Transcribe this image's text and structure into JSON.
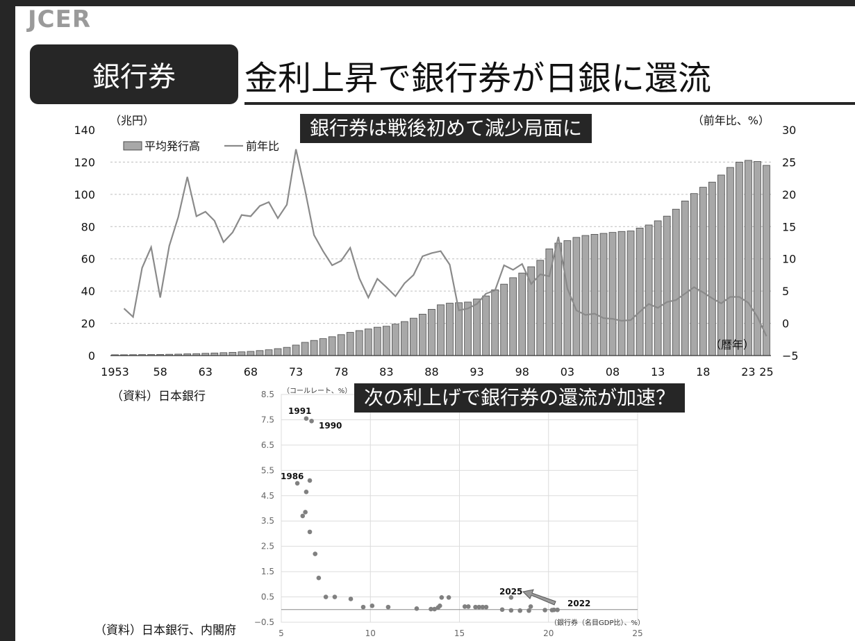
{
  "header": {
    "logo": "JCER",
    "section": "銀行券",
    "title": "金利上昇で銀行券が日銀に還流"
  },
  "banners": {
    "top": "銀行券は戦後初めて減少局面に",
    "bottom": "次の利上げで銀行券の還流が加速？"
  },
  "sources": {
    "top": "（資料）日本銀行",
    "bottom": "（資料）日本銀行、内閣府"
  },
  "colors": {
    "bar": "#a8a8a8",
    "bar_stroke": "#4a4a4a",
    "line": "#8a8a8a",
    "dot": "#808080",
    "banner": "#262626"
  },
  "chart_data": [
    {
      "type": "bar+line",
      "left_unit": "（兆円）",
      "right_unit": "（前年比、%）",
      "x_unit": "（暦年）",
      "ylim_left": [
        0,
        140
      ],
      "ylim_right": [
        -5,
        30
      ],
      "y_ticks_left": [
        "0",
        "20",
        "40",
        "60",
        "80",
        "100",
        "120",
        "140"
      ],
      "y_ticks_right": [
        "−5",
        "0",
        "5",
        "10",
        "15",
        "20",
        "25",
        "30"
      ],
      "x_ticks": [
        {
          "year": 1953,
          "label": "1953"
        },
        {
          "year": 1958,
          "label": "58"
        },
        {
          "year": 1963,
          "label": "63"
        },
        {
          "year": 1968,
          "label": "68"
        },
        {
          "year": 1973,
          "label": "73"
        },
        {
          "year": 1978,
          "label": "78"
        },
        {
          "year": 1983,
          "label": "83"
        },
        {
          "year": 1988,
          "label": "88"
        },
        {
          "year": 1993,
          "label": "93"
        },
        {
          "year": 1998,
          "label": "98"
        },
        {
          "year": 2003,
          "label": "03"
        },
        {
          "year": 2008,
          "label": "08"
        },
        {
          "year": 2013,
          "label": "13"
        },
        {
          "year": 2018,
          "label": "18"
        },
        {
          "year": 2023,
          "label": "23"
        },
        {
          "year": 2025,
          "label": "25"
        }
      ],
      "grid": true,
      "legend_position": "top-left",
      "series": [
        {
          "name": "平均発行高",
          "kind": "bar",
          "axis": "left",
          "years": [
            1953,
            1954,
            1955,
            1956,
            1957,
            1958,
            1959,
            1960,
            1961,
            1962,
            1963,
            1964,
            1965,
            1966,
            1967,
            1968,
            1969,
            1970,
            1971,
            1972,
            1973,
            1974,
            1975,
            1976,
            1977,
            1978,
            1979,
            1980,
            1981,
            1982,
            1983,
            1984,
            1985,
            1986,
            1987,
            1988,
            1989,
            1990,
            1991,
            1992,
            1993,
            1994,
            1995,
            1996,
            1997,
            1998,
            1999,
            2000,
            2001,
            2002,
            2003,
            2004,
            2005,
            2006,
            2007,
            2008,
            2009,
            2010,
            2011,
            2012,
            2013,
            2014,
            2015,
            2016,
            2017,
            2018,
            2019,
            2020,
            2021,
            2022,
            2023,
            2024,
            2025
          ],
          "values": [
            0.5,
            0.5,
            0.55,
            0.6,
            0.65,
            0.7,
            0.8,
            0.9,
            1.1,
            1.2,
            1.4,
            1.6,
            1.8,
            2.0,
            2.3,
            2.6,
            3.1,
            3.6,
            4.3,
            5.1,
            6.5,
            8.2,
            9.4,
            10.5,
            11.7,
            13.0,
            14.4,
            15.5,
            16.5,
            17.6,
            18.2,
            19.5,
            21.1,
            23.2,
            25.7,
            28.7,
            31.5,
            32.5,
            32.8,
            33.2,
            35.1,
            37.0,
            40.8,
            44.3,
            48.3,
            51.2,
            55.1,
            59.1,
            66.2,
            69.8,
            71.3,
            73.3,
            74.5,
            75.2,
            75.8,
            76.4,
            77.0,
            77.3,
            79.1,
            81.0,
            83.6,
            86.5,
            90.8,
            95.9,
            100.5,
            104.4,
            107.6,
            112.0,
            116.7,
            120.0,
            121.1,
            120.4,
            118.0
          ]
        },
        {
          "name": "前年比",
          "kind": "line",
          "axis": "right",
          "years": [
            1954,
            1955,
            1956,
            1957,
            1958,
            1959,
            1960,
            1961,
            1962,
            1963,
            1964,
            1965,
            1966,
            1967,
            1968,
            1969,
            1970,
            1971,
            1972,
            1973,
            1974,
            1975,
            1976,
            1977,
            1978,
            1979,
            1980,
            1981,
            1982,
            1983,
            1984,
            1985,
            1986,
            1987,
            1988,
            1989,
            1990,
            1991,
            1992,
            1993,
            1994,
            1995,
            1996,
            1997,
            1998,
            1999,
            2000,
            2001,
            2002,
            2003,
            2004,
            2005,
            2006,
            2007,
            2008,
            2009,
            2010,
            2011,
            2012,
            2013,
            2014,
            2015,
            2016,
            2017,
            2018,
            2019,
            2020,
            2021,
            2022,
            2023,
            2024,
            2025
          ],
          "values": [
            2.3,
            1.0,
            8.6,
            11.8,
            4.0,
            12.0,
            16.5,
            22.7,
            16.6,
            17.3,
            15.9,
            12.6,
            14.1,
            16.8,
            16.6,
            18.2,
            18.8,
            16.3,
            18.4,
            27.0,
            20.7,
            13.7,
            11.2,
            9.0,
            9.7,
            11.7,
            7.0,
            4.0,
            6.9,
            5.6,
            4.2,
            6.2,
            7.5,
            10.4,
            10.9,
            11.2,
            9.1,
            2.0,
            2.3,
            3.0,
            4.6,
            5.1,
            9.0,
            8.3,
            9.2,
            6.1,
            7.6,
            7.3,
            13.4,
            5.4,
            2.0,
            1.3,
            1.5,
            0.8,
            0.7,
            0.4,
            0.5,
            1.8,
            3.0,
            2.4,
            3.3,
            3.6,
            4.6,
            5.6,
            4.8,
            3.9,
            3.1,
            4.1,
            4.1,
            3.2,
            1.0,
            -2.0
          ]
        }
      ]
    },
    {
      "type": "scatter",
      "ylabel": "（コールレート、%）",
      "xlabel": "（銀行券（名目GDP比）、%）",
      "xlim": [
        5,
        25
      ],
      "ylim": [
        -0.5,
        8.5
      ],
      "x_ticks": [
        "5",
        "10",
        "15",
        "20",
        "25"
      ],
      "y_ticks": [
        "−0.5",
        "0.5",
        "1.5",
        "2.5",
        "3.5",
        "4.5",
        "5.5",
        "6.5",
        "7.5",
        "8.5"
      ],
      "grid": true,
      "annotations": [
        "1991",
        "1990",
        "1986",
        "2025",
        "2022"
      ],
      "points": [
        [
          5.9,
          4.99
        ],
        [
          6.2,
          3.7
        ],
        [
          6.35,
          3.85
        ],
        [
          6.4,
          4.65
        ],
        [
          6.4,
          7.55
        ],
        [
          6.6,
          5.1
        ],
        [
          6.6,
          3.07
        ],
        [
          6.7,
          7.45
        ],
        [
          6.9,
          2.2
        ],
        [
          7.1,
          1.25
        ],
        [
          7.5,
          0.5
        ],
        [
          8.0,
          0.5
        ],
        [
          8.9,
          0.42
        ],
        [
          9.6,
          0.1
        ],
        [
          10.1,
          0.15
        ],
        [
          11.0,
          0.1
        ],
        [
          12.6,
          0.04
        ],
        [
          13.4,
          0.02
        ],
        [
          13.6,
          0.02
        ],
        [
          13.8,
          0.08
        ],
        [
          13.9,
          0.15
        ],
        [
          14.0,
          0.48
        ],
        [
          14.4,
          0.48
        ],
        [
          15.3,
          0.12
        ],
        [
          15.5,
          0.12
        ],
        [
          15.9,
          0.1
        ],
        [
          16.1,
          0.1
        ],
        [
          16.3,
          0.1
        ],
        [
          16.5,
          0.1
        ],
        [
          17.4,
          0.0
        ],
        [
          17.9,
          -0.03
        ],
        [
          18.4,
          -0.04
        ],
        [
          18.9,
          -0.04
        ],
        [
          19.0,
          0.12
        ],
        [
          19.8,
          -0.02
        ],
        [
          20.2,
          -0.02
        ],
        [
          20.3,
          -0.01
        ],
        [
          20.5,
          -0.01
        ],
        [
          17.9,
          0.48
        ]
      ]
    }
  ]
}
